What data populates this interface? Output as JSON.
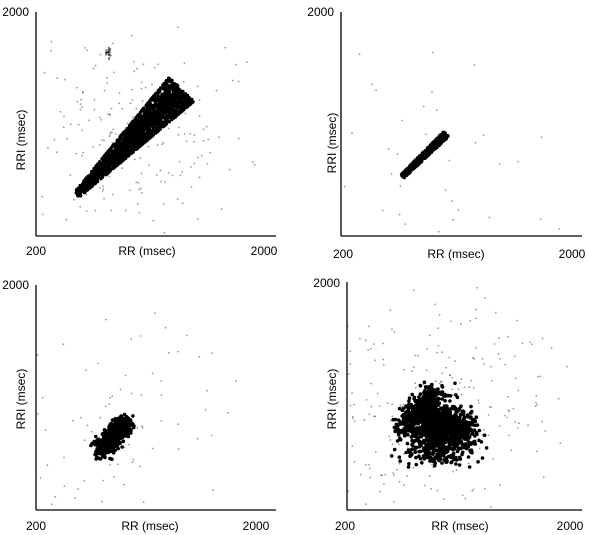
{
  "chart_data": [
    {
      "type": "scatter",
      "xlabel": "RR (msec)",
      "ylabel": "RRI (msec)",
      "xlim": [
        200,
        2000
      ],
      "ylim": [
        200,
        2000
      ],
      "x_tick_labels": [
        "200",
        "2000"
      ],
      "y_tick_labels": [
        "2000"
      ],
      "grid": false,
      "clusters": [
        {
          "shape": "elongated-diagonal",
          "x_range": [
            520,
            1350
          ],
          "y_range": [
            530,
            1380
          ],
          "density": "very-high"
        },
        {
          "shape": "small-cluster",
          "x_range": [
            740,
            800
          ],
          "y_range": [
            1620,
            1720
          ],
          "density": "low"
        }
      ]
    },
    {
      "type": "scatter",
      "xlabel": "RR (msec)",
      "ylabel": "RRI (msec)",
      "xlim": [
        200,
        2000
      ],
      "ylim": [
        200,
        2000
      ],
      "x_tick_labels": [
        "200",
        "2000"
      ],
      "y_tick_labels": [
        "2000"
      ],
      "grid": false,
      "clusters": [
        {
          "shape": "narrow-diagonal",
          "x_range": [
            680,
            1020
          ],
          "y_range": [
            680,
            1020
          ],
          "density": "high"
        }
      ]
    },
    {
      "type": "scatter",
      "xlabel": "RR (msec)",
      "ylabel": "RRI (msec)",
      "xlim": [
        200,
        2000
      ],
      "ylim": [
        200,
        2000
      ],
      "x_tick_labels": [
        "200",
        "2000"
      ],
      "y_tick_labels": [
        "2000"
      ],
      "grid": false,
      "clusters": [
        {
          "shape": "compact-blob",
          "x_range": [
            700,
            960
          ],
          "y_range": [
            640,
            940
          ],
          "density": "very-high"
        }
      ]
    },
    {
      "type": "scatter",
      "xlabel": "RR (msec)",
      "ylabel": "RRI (msec)",
      "xlim": [
        200,
        2000
      ],
      "ylim": [
        200,
        2000
      ],
      "x_tick_labels": [
        "200",
        "2000"
      ],
      "y_tick_labels": [
        "2000"
      ],
      "grid": false,
      "clusters": [
        {
          "shape": "triangular-blob",
          "x_range": [
            640,
            1220
          ],
          "y_range": [
            580,
            1130
          ],
          "density": "very-high"
        }
      ]
    }
  ]
}
